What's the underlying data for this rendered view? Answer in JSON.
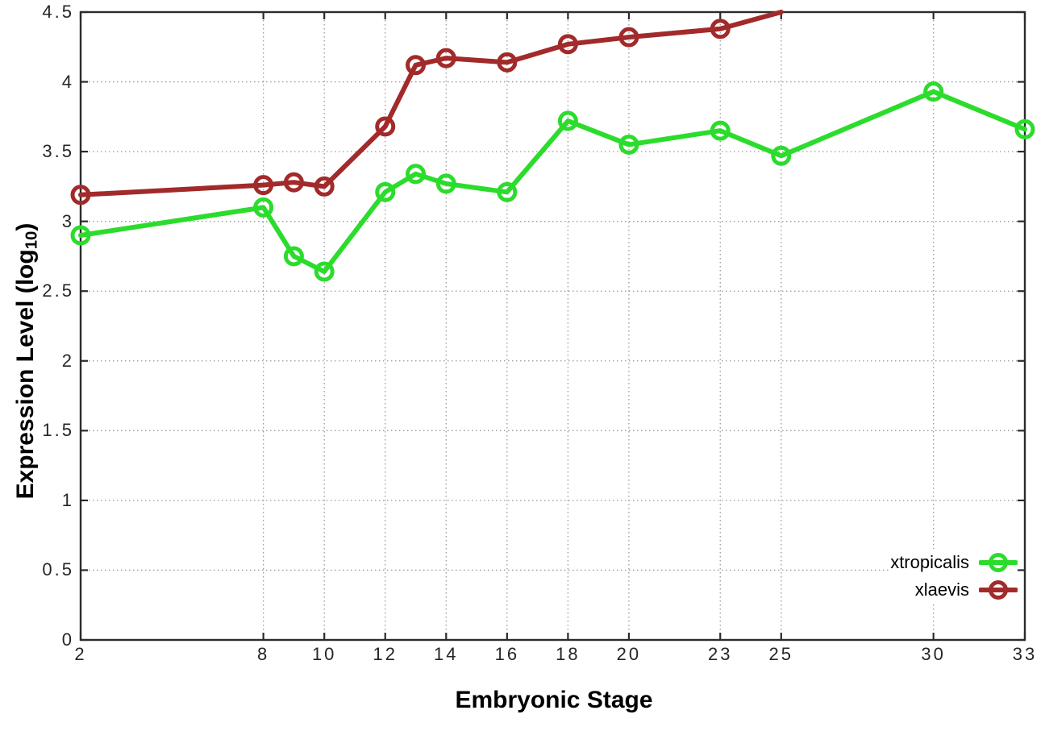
{
  "page": {
    "background": "#ffffff",
    "border_color": "#2b2b2b",
    "grid_color": "#999999",
    "tick_label_color": "#262626"
  },
  "chart_data": {
    "type": "line",
    "title": "",
    "xlabel": "Embryonic Stage",
    "ylabel": {
      "prefix": "Expression Level (log",
      "subscript": "10",
      "suffix": ")"
    },
    "xlim": [
      2,
      33
    ],
    "ylim": [
      0,
      4.5
    ],
    "grid": true,
    "x_ticks": [
      2,
      8,
      10,
      12,
      14,
      16,
      18,
      20,
      23,
      25,
      30,
      33
    ],
    "x_tick_labels": [
      "2",
      "8",
      "10",
      "12",
      "14",
      "16",
      "18",
      "20",
      "23",
      "25",
      "30",
      "33"
    ],
    "y_ticks": [
      0,
      0.5,
      1,
      1.5,
      2,
      2.5,
      3,
      3.5,
      4,
      4.5
    ],
    "y_tick_labels": [
      "0",
      "0.5",
      "1",
      "1.5",
      "2",
      "2.5",
      "3",
      "3.5",
      "4",
      "4.5"
    ],
    "legend": {
      "position": "inside-bottom-right",
      "entries": [
        "xtropicalis",
        "xlaevis"
      ]
    },
    "series": [
      {
        "name": "xtropicalis",
        "color": "#2cdc2c",
        "marker": "open-circle",
        "x": [
          2,
          8,
          9,
          10,
          12,
          13,
          14,
          16,
          18,
          20,
          23,
          25,
          30,
          33
        ],
        "y": [
          2.9,
          3.1,
          2.75,
          2.64,
          3.21,
          3.34,
          3.27,
          3.21,
          3.72,
          3.55,
          3.65,
          3.47,
          3.93,
          3.66
        ]
      },
      {
        "name": "xlaevis",
        "color": "#a22a2a",
        "marker": "open-circle",
        "x": [
          2,
          8,
          9,
          10,
          12,
          13,
          14,
          16,
          18,
          20,
          23,
          25
        ],
        "y": [
          3.19,
          3.26,
          3.28,
          3.25,
          3.68,
          4.12,
          4.17,
          4.14,
          4.27,
          4.32,
          4.38,
          4.5
        ]
      }
    ]
  }
}
